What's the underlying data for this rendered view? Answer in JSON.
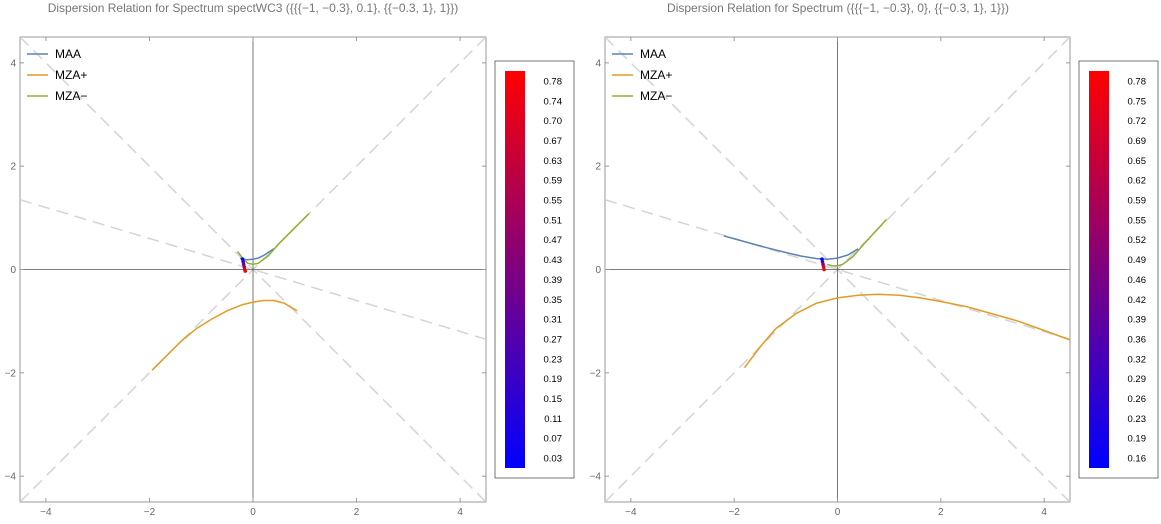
{
  "chart_data": [
    {
      "type": "line",
      "title": "Dispersion Relation for Spectrum spectWC3 ({{{−1, −0.3}, 0.1}, {{−0.3, 1}, 1}})",
      "xlim": [
        -4.5,
        4.5
      ],
      "ylim": [
        -4.5,
        4.5
      ],
      "xticks": [
        -4,
        -2,
        0,
        2,
        4
      ],
      "yticks": [
        -4,
        -2,
        0,
        2,
        4
      ],
      "xtick_labels": [
        "−4",
        "−2",
        "0",
        "2",
        "4"
      ],
      "ytick_labels": [
        "−4",
        "−2",
        "0",
        "2",
        "4"
      ],
      "legend_position": "top-left",
      "series": [
        {
          "name": "MAA",
          "color": "#5e81b5",
          "x": [
            -0.25,
            -0.2,
            -0.1,
            0.0,
            0.1,
            0.2,
            0.4
          ],
          "y": [
            0.22,
            0.2,
            0.19,
            0.2,
            0.22,
            0.27,
            0.4
          ]
        },
        {
          "name": "MZA+",
          "color": "#e19c24",
          "x": [
            -1.95,
            -1.7,
            -1.4,
            -1.1,
            -0.8,
            -0.5,
            -0.2,
            0.0,
            0.2,
            0.4,
            0.6,
            0.85
          ],
          "y": [
            -1.95,
            -1.7,
            -1.4,
            -1.15,
            -0.96,
            -0.8,
            -0.68,
            -0.63,
            -0.6,
            -0.6,
            -0.65,
            -0.8
          ]
        },
        {
          "name": "MZA−",
          "color": "#8fb032",
          "x": [
            -0.3,
            -0.2,
            -0.1,
            0.0,
            0.1,
            0.3,
            0.5,
            0.8,
            1.08
          ],
          "y": [
            0.35,
            0.22,
            0.12,
            0.1,
            0.12,
            0.27,
            0.5,
            0.8,
            1.08
          ]
        }
      ],
      "guide_lines": [
        {
          "x1": -4.5,
          "y1": -4.5,
          "x2": 4.5,
          "y2": 4.5
        },
        {
          "x1": -4.5,
          "y1": 4.5,
          "x2": 4.5,
          "y2": -4.5
        },
        {
          "x1": -4.5,
          "y1": 1.35,
          "x2": 4.5,
          "y2": -1.35
        }
      ],
      "spectrum_points": {
        "x": [
          -0.2,
          -0.19,
          -0.18,
          -0.17,
          -0.16,
          -0.15
        ],
        "y": [
          0.2,
          0.15,
          0.1,
          0.05,
          0.0,
          -0.03
        ],
        "levels": [
          0.03,
          0.19,
          0.35,
          0.51,
          0.67,
          0.78
        ]
      },
      "colorbar": {
        "labels": [
          "0.78",
          "0.74",
          "0.70",
          "0.67",
          "0.63",
          "0.59",
          "0.55",
          "0.51",
          "0.47",
          "0.43",
          "0.39",
          "0.35",
          "0.31",
          "0.27",
          "0.23",
          "0.19",
          "0.15",
          "0.11",
          "0.07",
          "0.03"
        ],
        "color_low": "#0000ff",
        "color_high": "#ff0000"
      }
    },
    {
      "type": "line",
      "title": "Dispersion Relation for Spectrum ({{{−1, −0.3}, 0}, {{−0.3, 1}, 1}})",
      "xlim": [
        -4.5,
        4.5
      ],
      "ylim": [
        -4.5,
        4.5
      ],
      "xticks": [
        -4,
        -2,
        0,
        2,
        4
      ],
      "yticks": [
        -4,
        -2,
        0,
        2,
        4
      ],
      "xtick_labels": [
        "−4",
        "−2",
        "0",
        "2",
        "4"
      ],
      "ytick_labels": [
        "−4",
        "−2",
        "0",
        "2",
        "4"
      ],
      "legend_position": "top-left",
      "series": [
        {
          "name": "MAA",
          "color": "#5e81b5",
          "x": [
            -2.2,
            -1.8,
            -1.4,
            -1.0,
            -0.7,
            -0.4,
            -0.2,
            0.0,
            0.2,
            0.4
          ],
          "y": [
            0.65,
            0.54,
            0.43,
            0.33,
            0.26,
            0.21,
            0.2,
            0.22,
            0.28,
            0.4
          ]
        },
        {
          "name": "MZA+",
          "color": "#e19c24",
          "x": [
            -1.8,
            -1.5,
            -1.2,
            -0.8,
            -0.4,
            0.0,
            0.4,
            0.8,
            1.2,
            1.6,
            2.0,
            2.5,
            3.0,
            3.5,
            4.0,
            4.6
          ],
          "y": [
            -1.9,
            -1.5,
            -1.15,
            -0.85,
            -0.65,
            -0.55,
            -0.5,
            -0.48,
            -0.5,
            -0.55,
            -0.62,
            -0.72,
            -0.86,
            -1.0,
            -1.18,
            -1.4
          ]
        },
        {
          "name": "MZA−",
          "color": "#8fb032",
          "x": [
            -0.2,
            -0.1,
            0.0,
            0.1,
            0.3,
            0.5,
            0.7,
            0.95
          ],
          "y": [
            0.1,
            0.07,
            0.07,
            0.1,
            0.25,
            0.48,
            0.7,
            0.97
          ]
        }
      ],
      "guide_lines": [
        {
          "x1": -4.5,
          "y1": -4.5,
          "x2": 4.5,
          "y2": 4.5
        },
        {
          "x1": -4.5,
          "y1": 4.5,
          "x2": 4.5,
          "y2": -4.5
        },
        {
          "x1": -4.5,
          "y1": 1.35,
          "x2": 4.5,
          "y2": -1.35
        }
      ],
      "spectrum_points": {
        "x": [
          -0.3,
          -0.29,
          -0.28,
          -0.27,
          -0.26
        ],
        "y": [
          0.2,
          0.15,
          0.1,
          0.05,
          0.0
        ],
        "levels": [
          0.16,
          0.32,
          0.49,
          0.65,
          0.78
        ]
      },
      "colorbar": {
        "labels": [
          "0.78",
          "0.75",
          "0.72",
          "0.69",
          "0.65",
          "0.62",
          "0.59",
          "0.55",
          "0.52",
          "0.49",
          "0.46",
          "0.42",
          "0.39",
          "0.36",
          "0.32",
          "0.29",
          "0.26",
          "0.23",
          "0.19",
          "0.16"
        ],
        "color_low": "#0000ff",
        "color_high": "#ff0000"
      }
    }
  ]
}
